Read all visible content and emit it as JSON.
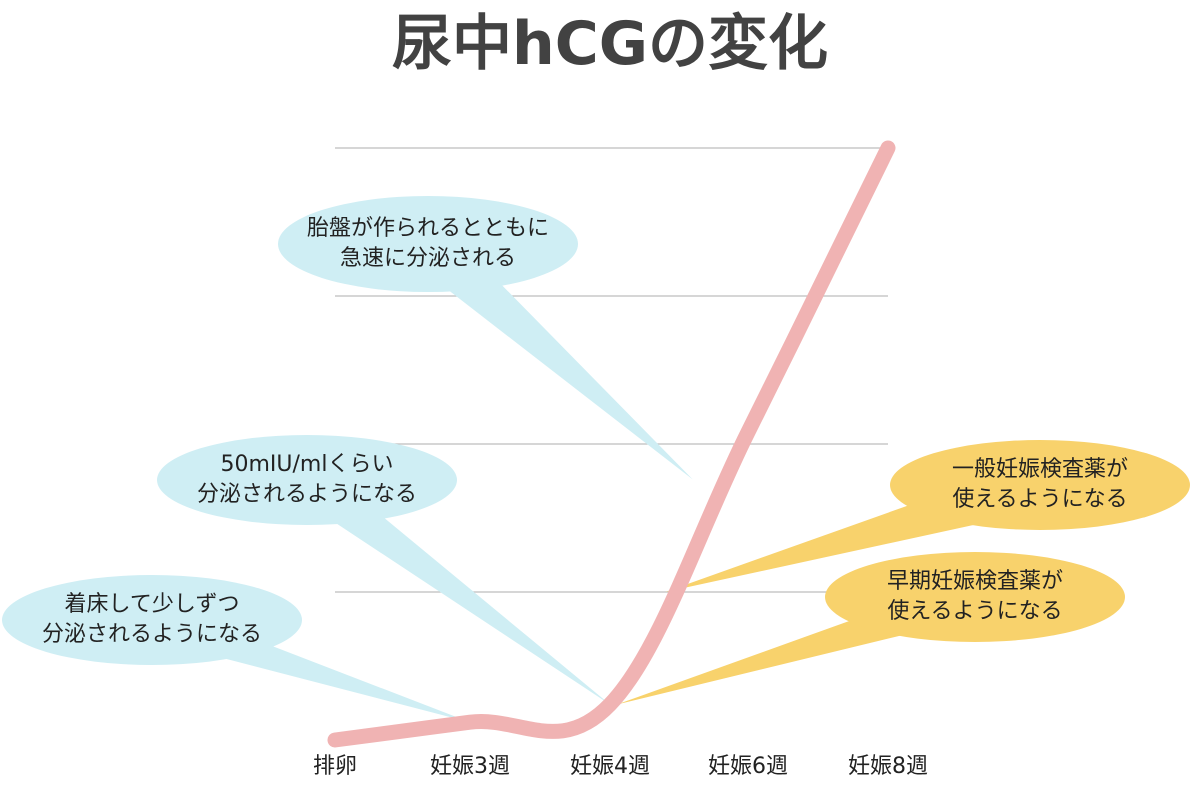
{
  "chart_data": {
    "type": "line",
    "title": "尿中hCGの変化",
    "xlabel": "",
    "ylabel": "",
    "categories": [
      "排卵",
      "妊娠3週",
      "妊娠4週",
      "妊娠6週",
      "妊娠8週"
    ],
    "y_gridlines": 4,
    "series": [
      {
        "color": "#f0b3b3",
        "values": [
          0,
          3,
          6,
          52,
          100
        ]
      }
    ],
    "annotations": [
      {
        "lines": [
          "着床して少しずつ",
          "分泌されるようになる"
        ],
        "color": "#cfeef4",
        "target": [
          1,
          3
        ]
      },
      {
        "lines": [
          "50mIU/mlくらい",
          "分泌されるようになる"
        ],
        "color": "#cfeef4",
        "target": [
          2,
          6
        ]
      },
      {
        "lines": [
          "胎盤が作られるとともに",
          "急速に分泌される"
        ],
        "color": "#cfeef4",
        "target": [
          2.6,
          44
        ]
      },
      {
        "lines": [
          "一般妊娠検査薬が",
          "使えるようになる"
        ],
        "color": "#f8d26c",
        "target": [
          2.4,
          25
        ]
      },
      {
        "lines": [
          "早期妊娠検査薬が",
          "使えるようになる"
        ],
        "color": "#f8d26c",
        "target": [
          2.05,
          6
        ]
      }
    ]
  }
}
